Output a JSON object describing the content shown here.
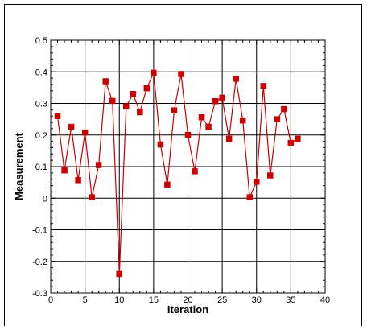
{
  "chart_data": {
    "type": "line",
    "title": "",
    "xlabel": "Iteration",
    "ylabel": "Measurement",
    "xlim": [
      0,
      40
    ],
    "ylim": [
      -0.3,
      0.5
    ],
    "grid": true,
    "x_ticks": [
      0,
      5,
      10,
      15,
      20,
      25,
      30,
      35,
      40
    ],
    "y_ticks": [
      -0.3,
      -0.2,
      -0.1,
      0,
      0.1,
      0.2,
      0.3,
      0.4,
      0.5
    ],
    "x_tick_labels": [
      "0",
      "5",
      "10",
      "15",
      "20",
      "25",
      "30",
      "35",
      "40"
    ],
    "y_tick_labels": [
      "-0.3",
      "-0.2",
      "-0.1",
      "0",
      "0.1",
      "0.2",
      "0.3",
      "0.4",
      "0.5"
    ],
    "series": [
      {
        "color": "#cc0000",
        "marker": "square",
        "x": [
          1,
          2,
          3,
          4,
          5,
          6,
          7,
          8,
          9,
          10,
          11,
          12,
          13,
          14,
          15,
          16,
          17,
          18,
          19,
          20,
          21,
          22,
          23,
          24,
          25,
          26,
          27,
          28,
          29,
          30,
          31,
          32,
          33,
          34,
          35,
          36
        ],
        "y": [
          0.26,
          0.088,
          0.226,
          0.057,
          0.208,
          0.003,
          0.105,
          0.37,
          0.308,
          -0.24,
          0.29,
          0.33,
          0.272,
          0.348,
          0.397,
          0.17,
          0.043,
          0.278,
          0.393,
          0.2,
          0.085,
          0.256,
          0.226,
          0.307,
          0.318,
          0.188,
          0.378,
          0.246,
          0.003,
          0.052,
          0.355,
          0.072,
          0.25,
          0.282,
          0.175,
          0.188
        ]
      }
    ]
  }
}
